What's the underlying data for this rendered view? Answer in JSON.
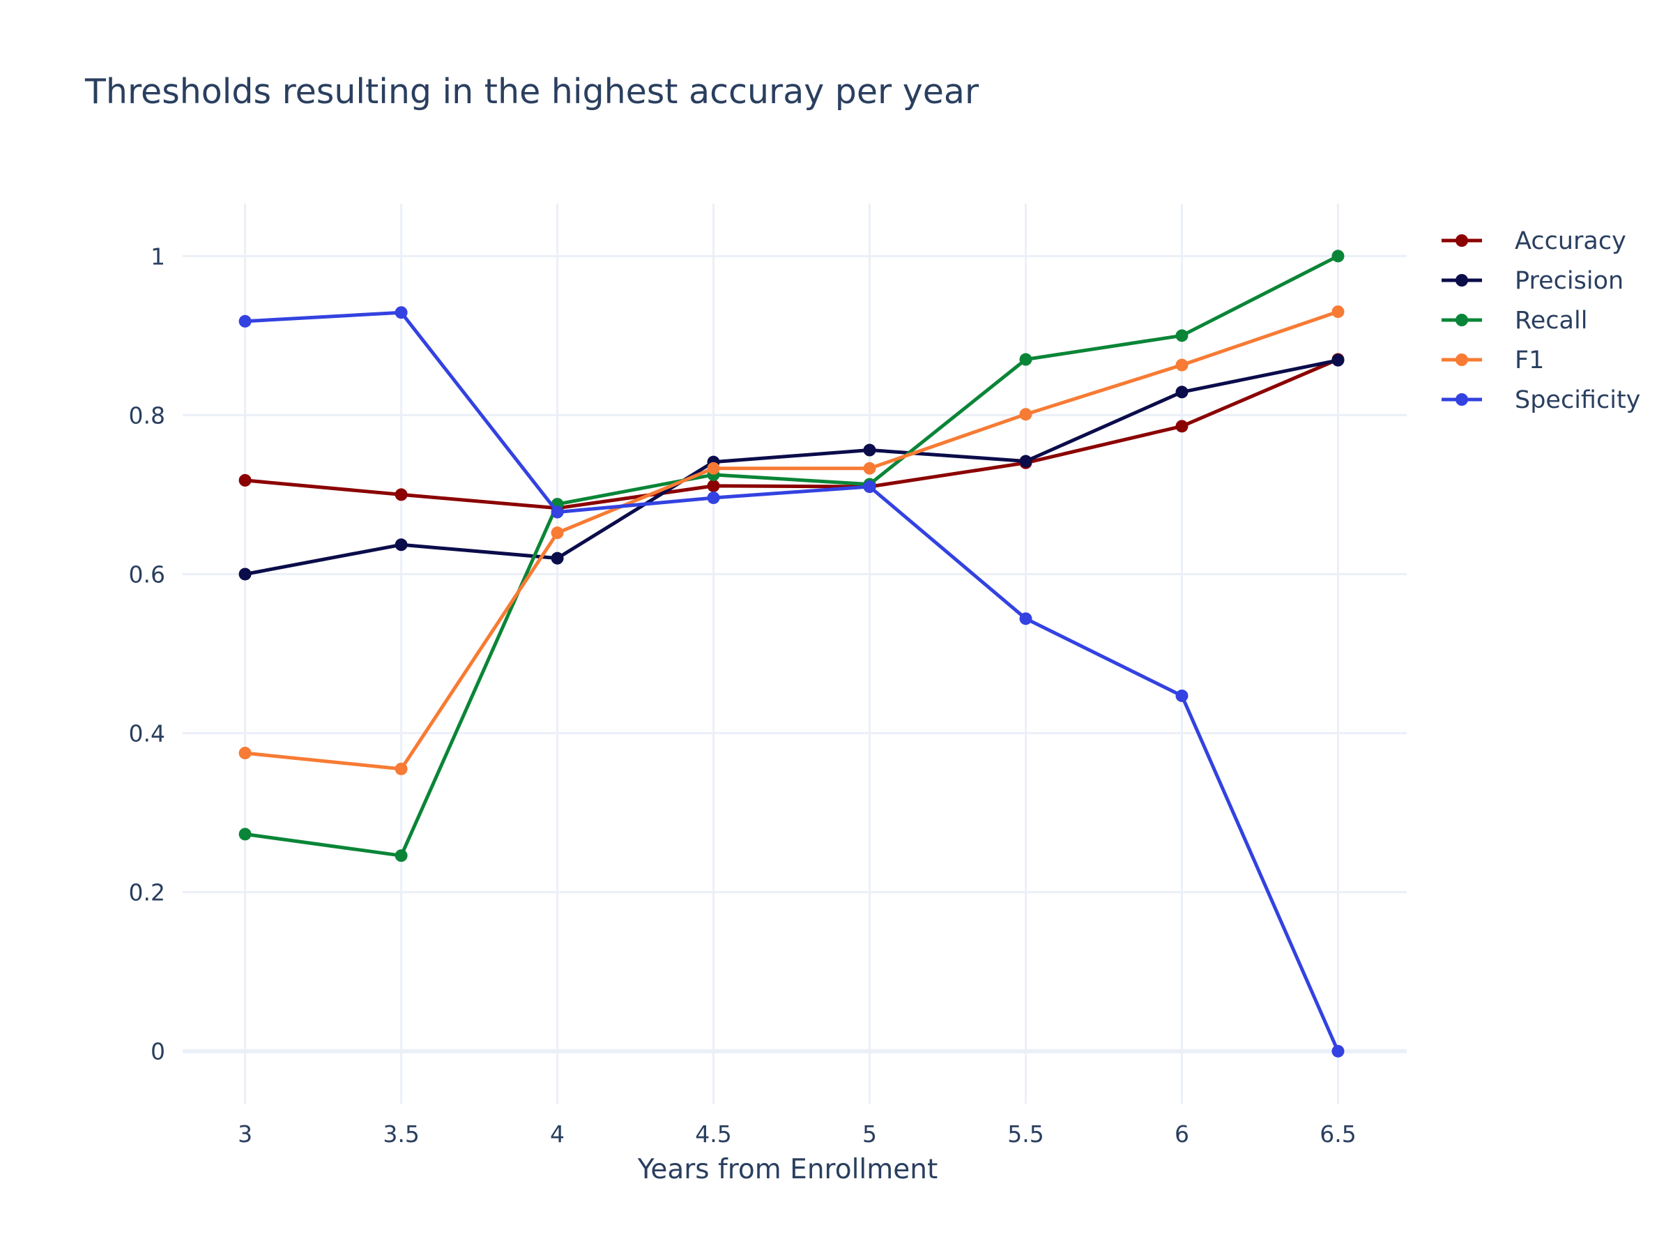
{
  "chart_data": {
    "type": "line",
    "title": "Thresholds resulting in the highest accuray per year",
    "xlabel": "Years from Enrollment",
    "ylabel": "",
    "x": [
      3,
      3.5,
      4,
      4.5,
      5,
      5.5,
      6,
      6.5
    ],
    "x_tick_labels": [
      "3",
      "3.5",
      "4",
      "4.5",
      "5",
      "5.5",
      "6",
      "6.5"
    ],
    "y_ticks": [
      0,
      0.2,
      0.4,
      0.6,
      0.8,
      1
    ],
    "y_tick_labels": [
      "0",
      "0.2",
      "0.4",
      "0.6",
      "0.8",
      "1"
    ],
    "xlim": [
      2.8,
      6.72
    ],
    "ylim": [
      -0.066,
      1.066
    ],
    "grid": true,
    "legend_position": "top-right",
    "series": [
      {
        "name": "Accuracy",
        "color": "#8b0000",
        "values": [
          0.718,
          0.7,
          0.683,
          0.711,
          0.71,
          0.74,
          0.786,
          0.87
        ]
      },
      {
        "name": "Precision",
        "color": "#0b0c4a",
        "values": [
          0.6,
          0.637,
          0.62,
          0.741,
          0.756,
          0.742,
          0.829,
          0.869
        ]
      },
      {
        "name": "Recall",
        "color": "#0a8537",
        "values": [
          0.273,
          0.246,
          0.688,
          0.725,
          0.713,
          0.87,
          0.9,
          1.0
        ]
      },
      {
        "name": "F1",
        "color": "#f77b34",
        "values": [
          0.375,
          0.355,
          0.652,
          0.733,
          0.733,
          0.801,
          0.863,
          0.93
        ]
      },
      {
        "name": "Specificity",
        "color": "#3342e0",
        "values": [
          0.918,
          0.929,
          0.678,
          0.696,
          0.71,
          0.544,
          0.447,
          0.0
        ]
      }
    ]
  }
}
